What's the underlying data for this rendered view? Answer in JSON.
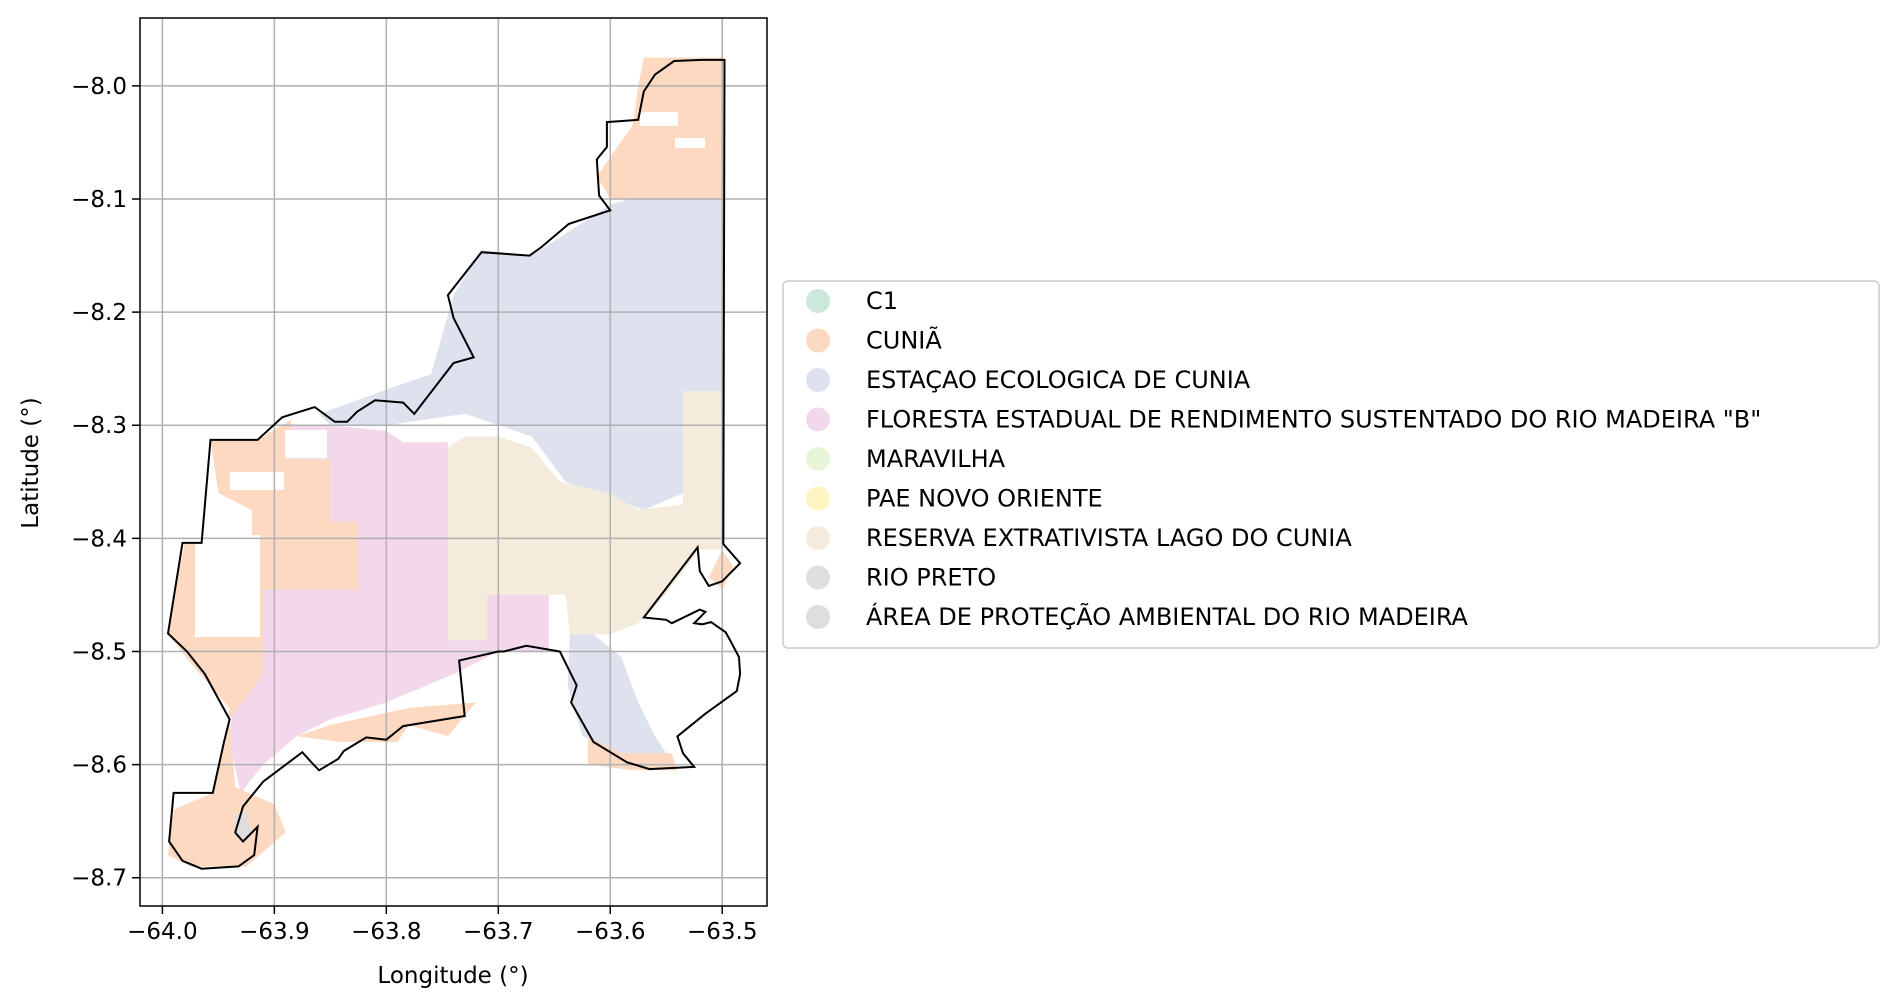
{
  "chart_data": {
    "type": "map",
    "xlabel": "Longitude (°)",
    "ylabel": "Latitude (°)",
    "xlim": [
      -64.02,
      -63.46
    ],
    "ylim": [
      -8.725,
      -7.94
    ],
    "x_ticks": [
      {
        "value": -64.0,
        "label": "−64.0"
      },
      {
        "value": -63.9,
        "label": "−63.9"
      },
      {
        "value": -63.8,
        "label": "−63.8"
      },
      {
        "value": -63.7,
        "label": "−63.7"
      },
      {
        "value": -63.6,
        "label": "−63.6"
      },
      {
        "value": -63.5,
        "label": "−63.5"
      }
    ],
    "y_ticks": [
      {
        "value": -8.0,
        "label": "−8.0"
      },
      {
        "value": -8.1,
        "label": "−8.1"
      },
      {
        "value": -8.2,
        "label": "−8.2"
      },
      {
        "value": -8.3,
        "label": "−8.3"
      },
      {
        "value": -8.4,
        "label": "−8.4"
      },
      {
        "value": -8.5,
        "label": "−8.5"
      },
      {
        "value": -8.6,
        "label": "−8.6"
      },
      {
        "value": -8.7,
        "label": "−8.7"
      }
    ],
    "grid": true,
    "legend_position": "right, outside plot",
    "legend": [
      {
        "label": "C1",
        "color": "#cce8da"
      },
      {
        "label": "CUNIÃ",
        "color": "#fdd9c2"
      },
      {
        "label": "ESTAÇAO ECOLOGICA DE CUNIA",
        "color": "#dee2ef"
      },
      {
        "label": "FLORESTA ESTADUAL DE RENDIMENTO SUSTENTADO DO RIO MADEIRA \"B\"",
        "color": "#f3d7eb"
      },
      {
        "label": "MARAVILHA",
        "color": "#e9f5d9"
      },
      {
        "label": "PAE NOVO ORIENTE",
        "color": "#fff5c2"
      },
      {
        "label": "RESERVA EXTRATIVISTA LAGO DO CUNIA",
        "color": "#f5ebdc"
      },
      {
        "label": "RIO PRETO",
        "color": "#dedede"
      },
      {
        "label": "ÁREA DE PROTEÇÃO AMBIENTAL DO RIO MADEIRA",
        "color": "#dedede"
      }
    ],
    "regions": [
      {
        "class": "ESTAÇAO ECOLOGICA DE CUNIA",
        "coords": [
          [
            -63.74,
            -8.185
          ],
          [
            -63.715,
            -8.145
          ],
          [
            -63.67,
            -8.15
          ],
          [
            -63.6,
            -8.105
          ],
          [
            -63.583,
            -8.1
          ],
          [
            -63.55,
            -8.1
          ],
          [
            -63.5,
            -8.1
          ],
          [
            -63.5,
            -8.27
          ],
          [
            -63.535,
            -8.27
          ],
          [
            -63.535,
            -8.36
          ],
          [
            -63.57,
            -8.375
          ],
          [
            -63.64,
            -8.35
          ],
          [
            -63.67,
            -8.31
          ],
          [
            -63.73,
            -8.29
          ],
          [
            -63.8,
            -8.3
          ],
          [
            -63.85,
            -8.3
          ],
          [
            -63.86,
            -8.29
          ],
          [
            -63.79,
            -8.265
          ],
          [
            -63.76,
            -8.255
          ]
        ]
      },
      {
        "class": "ESTAÇAO ECOLOGICA DE CUNIA",
        "coords": [
          [
            -63.636,
            -8.485
          ],
          [
            -63.615,
            -8.485
          ],
          [
            -63.59,
            -8.505
          ],
          [
            -63.575,
            -8.545
          ],
          [
            -63.56,
            -8.575
          ],
          [
            -63.55,
            -8.59
          ],
          [
            -63.59,
            -8.59
          ],
          [
            -63.625,
            -8.575
          ],
          [
            -63.638,
            -8.53
          ]
        ]
      },
      {
        "class": "RESERVA EXTRATIVISTA LAGO DO CUNIA",
        "coords": [
          [
            -63.745,
            -8.32
          ],
          [
            -63.73,
            -8.31
          ],
          [
            -63.7,
            -8.31
          ],
          [
            -63.67,
            -8.32
          ],
          [
            -63.645,
            -8.35
          ],
          [
            -63.6,
            -8.36
          ],
          [
            -63.575,
            -8.375
          ],
          [
            -63.535,
            -8.37
          ],
          [
            -63.535,
            -8.27
          ],
          [
            -63.5,
            -8.27
          ],
          [
            -63.5,
            -8.41
          ],
          [
            -63.52,
            -8.41
          ],
          [
            -63.555,
            -8.455
          ],
          [
            -63.575,
            -8.475
          ],
          [
            -63.6,
            -8.485
          ],
          [
            -63.636,
            -8.485
          ],
          [
            -63.64,
            -8.45
          ],
          [
            -63.71,
            -8.45
          ],
          [
            -63.71,
            -8.49
          ],
          [
            -63.745,
            -8.49
          ]
        ]
      },
      {
        "class": "FLORESTA ESTADUAL DE RENDIMENTO SUSTENTADO DO RIO MADEIRA \"B\"",
        "coords": [
          [
            -63.885,
            -8.3
          ],
          [
            -63.85,
            -8.3
          ],
          [
            -63.8,
            -8.305
          ],
          [
            -63.785,
            -8.315
          ],
          [
            -63.745,
            -8.315
          ],
          [
            -63.745,
            -8.49
          ],
          [
            -63.71,
            -8.49
          ],
          [
            -63.71,
            -8.45
          ],
          [
            -63.655,
            -8.45
          ],
          [
            -63.655,
            -8.5
          ],
          [
            -63.7,
            -8.5
          ],
          [
            -63.74,
            -8.52
          ],
          [
            -63.8,
            -8.545
          ],
          [
            -63.85,
            -8.56
          ],
          [
            -63.88,
            -8.575
          ],
          [
            -63.91,
            -8.6
          ],
          [
            -63.93,
            -8.625
          ],
          [
            -63.94,
            -8.58
          ],
          [
            -63.935,
            -8.52
          ],
          [
            -63.91,
            -8.445
          ],
          [
            -63.825,
            -8.445
          ],
          [
            -63.825,
            -8.385
          ],
          [
            -63.85,
            -8.385
          ],
          [
            -63.85,
            -8.33
          ],
          [
            -63.885,
            -8.33
          ]
        ]
      },
      {
        "class": "CUNIÃ",
        "coords": [
          [
            -63.57,
            -7.975
          ],
          [
            -63.5,
            -7.975
          ],
          [
            -63.5,
            -8.1
          ],
          [
            -63.6,
            -8.1
          ],
          [
            -63.612,
            -8.08
          ],
          [
            -63.58,
            -8.035
          ],
          [
            -63.575,
            -8.0
          ]
        ]
      },
      {
        "class": "CUNIÃ",
        "coords": [
          [
            -63.957,
            -8.313
          ],
          [
            -63.915,
            -8.313
          ],
          [
            -63.885,
            -8.295
          ],
          [
            -63.885,
            -8.33
          ],
          [
            -63.85,
            -8.33
          ],
          [
            -63.85,
            -8.385
          ],
          [
            -63.825,
            -8.385
          ],
          [
            -63.825,
            -8.445
          ],
          [
            -63.91,
            -8.445
          ],
          [
            -63.91,
            -8.52
          ],
          [
            -63.94,
            -8.56
          ],
          [
            -63.935,
            -8.62
          ],
          [
            -63.9,
            -8.635
          ],
          [
            -63.89,
            -8.66
          ],
          [
            -63.925,
            -8.69
          ],
          [
            -63.975,
            -8.69
          ],
          [
            -63.995,
            -8.68
          ],
          [
            -63.99,
            -8.64
          ],
          [
            -63.955,
            -8.625
          ],
          [
            -63.945,
            -8.585
          ],
          [
            -63.94,
            -8.55
          ],
          [
            -63.975,
            -8.51
          ],
          [
            -63.995,
            -8.485
          ],
          [
            -63.99,
            -8.45
          ],
          [
            -63.98,
            -8.405
          ],
          [
            -63.92,
            -8.405
          ],
          [
            -63.92,
            -8.375
          ],
          [
            -63.95,
            -8.36
          ]
        ]
      },
      {
        "class": "CUNIÃ",
        "coords": [
          [
            -63.88,
            -8.575
          ],
          [
            -63.84,
            -8.58
          ],
          [
            -63.79,
            -8.58
          ],
          [
            -63.78,
            -8.565
          ],
          [
            -63.745,
            -8.575
          ],
          [
            -63.72,
            -8.545
          ],
          [
            -63.78,
            -8.55
          ],
          [
            -63.85,
            -8.565
          ]
        ]
      },
      {
        "class": "CUNIÃ",
        "coords": [
          [
            -63.62,
            -8.575
          ],
          [
            -63.59,
            -8.59
          ],
          [
            -63.545,
            -8.59
          ],
          [
            -63.54,
            -8.605
          ],
          [
            -63.58,
            -8.605
          ],
          [
            -63.62,
            -8.6
          ]
        ]
      },
      {
        "class": "CUNIÃ",
        "coords": [
          [
            -63.5,
            -8.41
          ],
          [
            -63.49,
            -8.425
          ],
          [
            -63.5,
            -8.445
          ],
          [
            -63.512,
            -8.435
          ]
        ]
      },
      {
        "class": "RIO PRETO",
        "coords": [
          [
            -63.935,
            -8.645
          ],
          [
            -63.925,
            -8.64
          ],
          [
            -63.92,
            -8.665
          ],
          [
            -63.935,
            -8.665
          ]
        ]
      }
    ],
    "outline": [
      [
        -63.995,
        -8.484
      ],
      [
        -63.982,
        -8.404
      ],
      [
        -63.965,
        -8.404
      ],
      [
        -63.957,
        -8.313
      ],
      [
        -63.915,
        -8.313
      ],
      [
        -63.893,
        -8.293
      ],
      [
        -63.864,
        -8.284
      ],
      [
        -63.846,
        -8.297
      ],
      [
        -63.835,
        -8.297
      ],
      [
        -63.826,
        -8.288
      ],
      [
        -63.81,
        -8.278
      ],
      [
        -63.785,
        -8.28
      ],
      [
        -63.775,
        -8.29
      ],
      [
        -63.74,
        -8.245
      ],
      [
        -63.722,
        -8.24
      ],
      [
        -63.74,
        -8.205
      ],
      [
        -63.745,
        -8.185
      ],
      [
        -63.715,
        -8.147
      ],
      [
        -63.672,
        -8.15
      ],
      [
        -63.662,
        -8.143
      ],
      [
        -63.637,
        -8.122
      ],
      [
        -63.6,
        -8.11
      ],
      [
        -63.61,
        -8.097
      ],
      [
        -63.612,
        -8.065
      ],
      [
        -63.603,
        -8.054
      ],
      [
        -63.603,
        -8.032
      ],
      [
        -63.575,
        -8.03
      ],
      [
        -63.57,
        -8.005
      ],
      [
        -63.56,
        -7.99
      ],
      [
        -63.543,
        -7.978
      ],
      [
        -63.518,
        -7.977
      ],
      [
        -63.498,
        -7.977
      ],
      [
        -63.499,
        -8.405
      ],
      [
        -63.484,
        -8.422
      ],
      [
        -63.5,
        -8.438
      ],
      [
        -63.512,
        -8.442
      ],
      [
        -63.52,
        -8.429
      ],
      [
        -63.522,
        -8.408
      ],
      [
        -63.57,
        -8.47
      ],
      [
        -63.55,
        -8.472
      ],
      [
        -63.545,
        -8.475
      ],
      [
        -63.52,
        -8.463
      ],
      [
        -63.515,
        -8.465
      ],
      [
        -63.525,
        -8.475
      ],
      [
        -63.518,
        -8.476
      ],
      [
        -63.51,
        -8.474
      ],
      [
        -63.497,
        -8.483
      ],
      [
        -63.493,
        -8.49
      ],
      [
        -63.485,
        -8.505
      ],
      [
        -63.484,
        -8.52
      ],
      [
        -63.487,
        -8.535
      ],
      [
        -63.515,
        -8.555
      ],
      [
        -63.54,
        -8.575
      ],
      [
        -63.535,
        -8.59
      ],
      [
        -63.525,
        -8.602
      ],
      [
        -63.565,
        -8.604
      ],
      [
        -63.585,
        -8.598
      ],
      [
        -63.615,
        -8.58
      ],
      [
        -63.635,
        -8.545
      ],
      [
        -63.63,
        -8.53
      ],
      [
        -63.645,
        -8.5
      ],
      [
        -63.675,
        -8.495
      ],
      [
        -63.695,
        -8.5
      ],
      [
        -63.7,
        -8.5
      ],
      [
        -63.735,
        -8.508
      ],
      [
        -63.73,
        -8.557
      ],
      [
        -63.785,
        -8.566
      ],
      [
        -63.8,
        -8.578
      ],
      [
        -63.818,
        -8.576
      ],
      [
        -63.838,
        -8.588
      ],
      [
        -63.843,
        -8.595
      ],
      [
        -63.86,
        -8.605
      ],
      [
        -63.865,
        -8.6
      ],
      [
        -63.875,
        -8.589
      ],
      [
        -63.91,
        -8.615
      ],
      [
        -63.928,
        -8.637
      ],
      [
        -63.935,
        -8.66
      ],
      [
        -63.928,
        -8.668
      ],
      [
        -63.915,
        -8.655
      ],
      [
        -63.918,
        -8.68
      ],
      [
        -63.932,
        -8.69
      ],
      [
        -63.965,
        -8.692
      ],
      [
        -63.982,
        -8.685
      ],
      [
        -63.994,
        -8.668
      ],
      [
        -63.99,
        -8.625
      ],
      [
        -63.955,
        -8.625
      ],
      [
        -63.945,
        -8.58
      ],
      [
        -63.94,
        -8.56
      ],
      [
        -63.962,
        -8.52
      ],
      [
        -63.978,
        -8.5
      ],
      [
        -63.995,
        -8.484
      ]
    ]
  }
}
